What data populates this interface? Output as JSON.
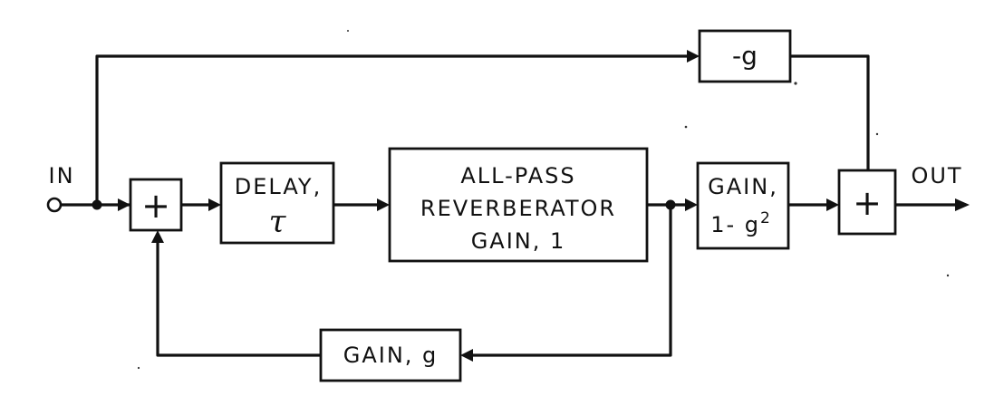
{
  "input_label": "IN",
  "output_label": "OUT",
  "sum_symbol": "+",
  "blocks": {
    "neg_gain": "-g",
    "delay": {
      "line1": "DELAY,",
      "symbol": "τ"
    },
    "allpass": {
      "line1": "ALL-PASS",
      "line2": "REVERBERATOR",
      "line3": "GAIN, 1"
    },
    "out_gain": {
      "line1": "GAIN,",
      "line2": "1- g",
      "exponent": "2"
    },
    "feedback_gain": "GAIN, g"
  }
}
